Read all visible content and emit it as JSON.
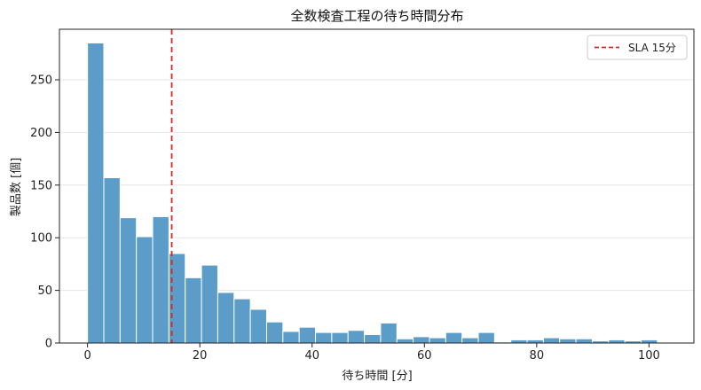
{
  "chart_data": {
    "type": "bar",
    "title": "全数検査工程の待ち時間分布",
    "xlabel": "待ち時間 [分]",
    "ylabel": "製品数 [個]",
    "xlim": [
      -5,
      108
    ],
    "ylim": [
      0,
      298
    ],
    "xticks": [
      0,
      20,
      40,
      60,
      80,
      100
    ],
    "yticks": [
      0,
      50,
      100,
      150,
      200,
      250
    ],
    "grid": "y",
    "bar_color": "#5b9cc9",
    "bin_width": 2.9,
    "bin_start": 0,
    "values": [
      285,
      157,
      119,
      101,
      120,
      85,
      62,
      74,
      48,
      42,
      32,
      20,
      11,
      15,
      10,
      10,
      12,
      8,
      19,
      4,
      6,
      5,
      10,
      5,
      10,
      1,
      3,
      3,
      5,
      4,
      4,
      2,
      3,
      2,
      3
    ],
    "reference_line": {
      "x": 15,
      "color": "#d62728",
      "style": "dashed",
      "label": "SLA 15分"
    },
    "legend": {
      "position": "top-right",
      "entries": [
        "SLA 15分"
      ]
    }
  }
}
